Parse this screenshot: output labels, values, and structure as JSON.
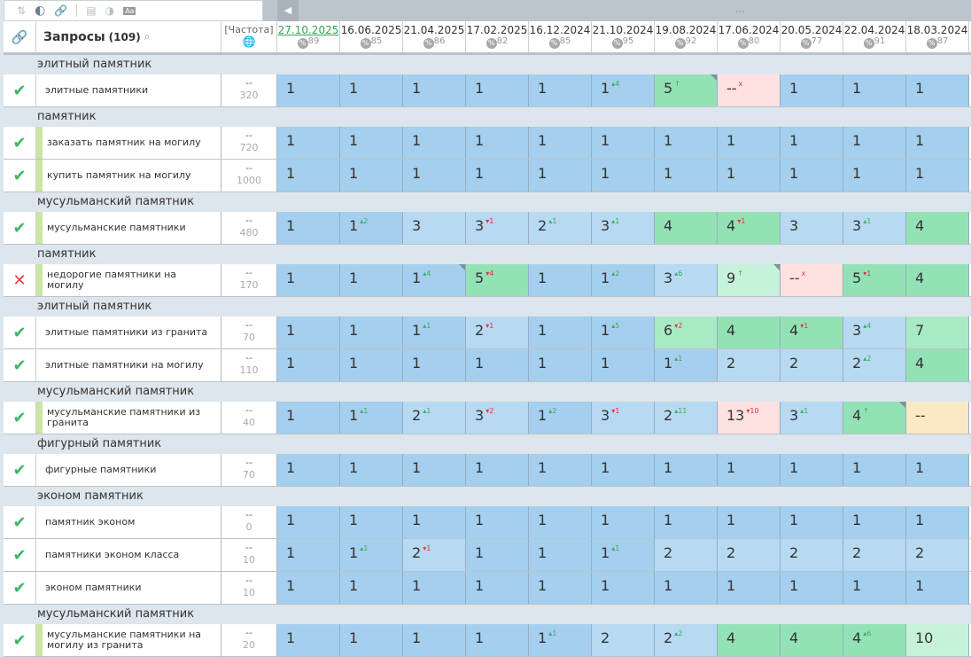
{
  "toolbar": {
    "icons": [
      "sort-icon",
      "toggle-icon",
      "link-icon",
      "calendar-icon",
      "contrast-icon",
      "font-icon"
    ]
  },
  "topbar": {
    "dots": "..."
  },
  "header": {
    "link_icon": "link-icon",
    "title": "Запросы",
    "count": "(109)",
    "search_icon": "search-icon",
    "freq": "[Частота]",
    "globe_icon": "globe-icon",
    "pct_symbol": "%",
    "dates": [
      {
        "d": "27.10.2025",
        "p": "89"
      },
      {
        "d": "16.06.2025",
        "p": "85"
      },
      {
        "d": "21.04.2025",
        "p": "86"
      },
      {
        "d": "17.02.2025",
        "p": "82"
      },
      {
        "d": "16.12.2024",
        "p": "85"
      },
      {
        "d": "21.10.2024",
        "p": "95"
      },
      {
        "d": "19.08.2024",
        "p": "92"
      },
      {
        "d": "17.06.2024",
        "p": "80"
      },
      {
        "d": "20.05.2024",
        "p": "77"
      },
      {
        "d": "22.04.2024",
        "p": "91"
      },
      {
        "d": "18.03.2024",
        "p": "87"
      }
    ]
  },
  "colors": {
    "b1": "#a4cfee",
    "b2": "#b7d9f2",
    "g": "#93e2b6",
    "lg": "#a8eac4",
    "vlg": "#c6f2da",
    "pk": "#fde1e1",
    "yl": "#fbe9c5",
    "ok": "#3cb763",
    "bad": "#e43d3d"
  },
  "groups": [
    {
      "name": "элитный памятник",
      "rows": [
        {
          "q": "элитные памятники",
          "status": "ok",
          "stripe": false,
          "f1": "--",
          "f2": "320",
          "cells": [
            [
              "1",
              "",
              "b1"
            ],
            [
              "1",
              "",
              "b1"
            ],
            [
              "1",
              "",
              "b1"
            ],
            [
              "1",
              "",
              "b1"
            ],
            [
              "1",
              "",
              "b1"
            ],
            [
              "1",
              "▴4",
              "b1",
              "up"
            ],
            [
              "5",
              "↑",
              "g",
              "up",
              1
            ],
            [
              "--",
              "x",
              "pk",
              "dn"
            ],
            [
              "1",
              "",
              "b1"
            ],
            [
              "1",
              "",
              "b1"
            ],
            [
              "1",
              "",
              "b1"
            ]
          ]
        }
      ]
    },
    {
      "name": "памятник",
      "rows": [
        {
          "q": "заказать памятник на могилу",
          "status": "ok",
          "stripe": true,
          "f1": "--",
          "f2": "720",
          "cells": [
            [
              "1",
              "",
              "b1"
            ],
            [
              "1",
              "",
              "b1"
            ],
            [
              "1",
              "",
              "b1"
            ],
            [
              "1",
              "",
              "b1"
            ],
            [
              "1",
              "",
              "b1"
            ],
            [
              "1",
              "",
              "b1"
            ],
            [
              "1",
              "",
              "b1"
            ],
            [
              "1",
              "",
              "b1"
            ],
            [
              "1",
              "",
              "b1"
            ],
            [
              "1",
              "",
              "b1"
            ],
            [
              "1",
              "",
              "b1"
            ]
          ]
        },
        {
          "q": "купить памятник на могилу",
          "status": "ok",
          "stripe": true,
          "f1": "--",
          "f2": "1000",
          "cells": [
            [
              "1",
              "",
              "b1"
            ],
            [
              "1",
              "",
              "b1"
            ],
            [
              "1",
              "",
              "b1"
            ],
            [
              "1",
              "",
              "b1"
            ],
            [
              "1",
              "",
              "b1"
            ],
            [
              "1",
              "",
              "b1"
            ],
            [
              "1",
              "",
              "b1"
            ],
            [
              "1",
              "",
              "b1"
            ],
            [
              "1",
              "",
              "b1"
            ],
            [
              "1",
              "",
              "b1"
            ],
            [
              "1",
              "",
              "b1"
            ]
          ]
        }
      ]
    },
    {
      "name": "мусульманский памятник",
      "rows": [
        {
          "q": "мусульманские памятники",
          "status": "ok",
          "stripe": true,
          "f1": "--",
          "f2": "480",
          "cells": [
            [
              "1",
              "",
              "b1"
            ],
            [
              "1",
              "▴2",
              "b1",
              "up"
            ],
            [
              "3",
              "",
              "b2"
            ],
            [
              "3",
              "▾1",
              "b2",
              "dn"
            ],
            [
              "2",
              "▴1",
              "b2",
              "up"
            ],
            [
              "3",
              "▴1",
              "b2",
              "up"
            ],
            [
              "4",
              "",
              "g"
            ],
            [
              "4",
              "▾1",
              "g",
              "dn"
            ],
            [
              "3",
              "",
              "b2"
            ],
            [
              "3",
              "▴1",
              "b2",
              "up"
            ],
            [
              "4",
              "",
              "g"
            ]
          ]
        }
      ]
    },
    {
      "name": "памятник",
      "rows": [
        {
          "q": "недорогие памятники на могилу",
          "status": "bad",
          "stripe": true,
          "f1": "--",
          "f2": "170",
          "cells": [
            [
              "1",
              "",
              "b1"
            ],
            [
              "1",
              "",
              "b1"
            ],
            [
              "1",
              "▴4",
              "b1",
              "up",
              1
            ],
            [
              "5",
              "▾4",
              "g",
              "dn"
            ],
            [
              "1",
              "",
              "b1"
            ],
            [
              "1",
              "▴2",
              "b1",
              "up"
            ],
            [
              "3",
              "▴6",
              "b2",
              "up"
            ],
            [
              "9",
              "↑",
              "vlg",
              "up",
              1
            ],
            [
              "--",
              "x",
              "pk",
              "dn"
            ],
            [
              "5",
              "▾1",
              "g",
              "dn"
            ],
            [
              "4",
              "",
              "g"
            ]
          ]
        }
      ]
    },
    {
      "name": "элитный памятник",
      "rows": [
        {
          "q": "элитные памятники из гранита",
          "status": "ok",
          "stripe": false,
          "f1": "--",
          "f2": "70",
          "cells": [
            [
              "1",
              "",
              "b1"
            ],
            [
              "1",
              "",
              "b1"
            ],
            [
              "1",
              "▴1",
              "b1",
              "up"
            ],
            [
              "2",
              "▾1",
              "b2",
              "dn"
            ],
            [
              "1",
              "",
              "b1"
            ],
            [
              "1",
              "▴5",
              "b1",
              "up"
            ],
            [
              "6",
              "▾2",
              "lg",
              "dn"
            ],
            [
              "4",
              "",
              "g"
            ],
            [
              "4",
              "▾1",
              "g",
              "dn"
            ],
            [
              "3",
              "▴4",
              "b2",
              "up"
            ],
            [
              "7",
              "",
              "lg"
            ]
          ]
        },
        {
          "q": "элитные памятники на могилу",
          "status": "ok",
          "stripe": false,
          "f1": "--",
          "f2": "110",
          "cells": [
            [
              "1",
              "",
              "b1"
            ],
            [
              "1",
              "",
              "b1"
            ],
            [
              "1",
              "",
              "b1"
            ],
            [
              "1",
              "",
              "b1"
            ],
            [
              "1",
              "",
              "b1"
            ],
            [
              "1",
              "",
              "b1"
            ],
            [
              "1",
              "▴1",
              "b1",
              "up"
            ],
            [
              "2",
              "",
              "b2"
            ],
            [
              "2",
              "",
              "b2"
            ],
            [
              "2",
              "▴2",
              "b2",
              "up"
            ],
            [
              "4",
              "",
              "g"
            ]
          ]
        }
      ]
    },
    {
      "name": "мусульманский памятник",
      "rows": [
        {
          "q": "мусульманские памятники из гранита",
          "status": "ok",
          "stripe": true,
          "f1": "--",
          "f2": "40",
          "cells": [
            [
              "1",
              "",
              "b1"
            ],
            [
              "1",
              "▴1",
              "b1",
              "up"
            ],
            [
              "2",
              "▴1",
              "b2",
              "up"
            ],
            [
              "3",
              "▾2",
              "b2",
              "dn"
            ],
            [
              "1",
              "▴2",
              "b1",
              "up"
            ],
            [
              "3",
              "▾1",
              "b2",
              "dn"
            ],
            [
              "2",
              "▴11",
              "b2",
              "up"
            ],
            [
              "13",
              "▾10",
              "pk",
              "dn"
            ],
            [
              "3",
              "▴1",
              "b2",
              "up"
            ],
            [
              "4",
              "↑",
              "g",
              "up",
              1
            ],
            [
              "--",
              "",
              "yl"
            ]
          ]
        }
      ]
    },
    {
      "name": "фигурный памятник",
      "rows": [
        {
          "q": "фигурные памятники",
          "status": "ok",
          "stripe": false,
          "f1": "--",
          "f2": "70",
          "cells": [
            [
              "1",
              "",
              "b1"
            ],
            [
              "1",
              "",
              "b1"
            ],
            [
              "1",
              "",
              "b1"
            ],
            [
              "1",
              "",
              "b1"
            ],
            [
              "1",
              "",
              "b1"
            ],
            [
              "1",
              "",
              "b1"
            ],
            [
              "1",
              "",
              "b1"
            ],
            [
              "1",
              "",
              "b1"
            ],
            [
              "1",
              "",
              "b1"
            ],
            [
              "1",
              "",
              "b1"
            ],
            [
              "1",
              "",
              "b1"
            ]
          ]
        }
      ]
    },
    {
      "name": "эконом памятник",
      "rows": [
        {
          "q": "памятник эконом",
          "status": "ok",
          "stripe": false,
          "f1": "--",
          "f2": "0",
          "cells": [
            [
              "1",
              "",
              "b1"
            ],
            [
              "1",
              "",
              "b1"
            ],
            [
              "1",
              "",
              "b1"
            ],
            [
              "1",
              "",
              "b1"
            ],
            [
              "1",
              "",
              "b1"
            ],
            [
              "1",
              "",
              "b1"
            ],
            [
              "1",
              "",
              "b1"
            ],
            [
              "1",
              "",
              "b1"
            ],
            [
              "1",
              "",
              "b1"
            ],
            [
              "1",
              "",
              "b1"
            ],
            [
              "1",
              "",
              "b1"
            ]
          ]
        },
        {
          "q": "памятники эконом класса",
          "status": "ok",
          "stripe": false,
          "f1": "--",
          "f2": "10",
          "cells": [
            [
              "1",
              "",
              "b1"
            ],
            [
              "1",
              "▴1",
              "b1",
              "up"
            ],
            [
              "2",
              "▾1",
              "b2",
              "dn"
            ],
            [
              "1",
              "",
              "b1"
            ],
            [
              "1",
              "",
              "b1"
            ],
            [
              "1",
              "▴1",
              "b1",
              "up"
            ],
            [
              "2",
              "",
              "b2"
            ],
            [
              "2",
              "",
              "b2"
            ],
            [
              "2",
              "",
              "b2"
            ],
            [
              "2",
              "",
              "b2"
            ],
            [
              "2",
              "",
              "b2"
            ]
          ]
        },
        {
          "q": "эконом памятники",
          "status": "ok",
          "stripe": false,
          "f1": "--",
          "f2": "10",
          "cells": [
            [
              "1",
              "",
              "b1"
            ],
            [
              "1",
              "",
              "b1"
            ],
            [
              "1",
              "",
              "b1"
            ],
            [
              "1",
              "",
              "b1"
            ],
            [
              "1",
              "",
              "b1"
            ],
            [
              "1",
              "",
              "b1"
            ],
            [
              "1",
              "",
              "b1"
            ],
            [
              "1",
              "",
              "b1"
            ],
            [
              "1",
              "",
              "b1"
            ],
            [
              "1",
              "",
              "b1"
            ],
            [
              "1",
              "",
              "b1"
            ]
          ]
        }
      ]
    },
    {
      "name": "мусульманский памятник",
      "rows": [
        {
          "q": "мусульманские памятники на могилу из гранита",
          "status": "ok",
          "stripe": true,
          "f1": "--",
          "f2": "20",
          "cells": [
            [
              "1",
              "",
              "b1"
            ],
            [
              "1",
              "",
              "b1"
            ],
            [
              "1",
              "",
              "b1"
            ],
            [
              "1",
              "",
              "b1"
            ],
            [
              "1",
              "▴1",
              "b1",
              "up"
            ],
            [
              "2",
              "",
              "b2"
            ],
            [
              "2",
              "▴2",
              "b2",
              "up"
            ],
            [
              "4",
              "",
              "g"
            ],
            [
              "4",
              "",
              "g"
            ],
            [
              "4",
              "▴6",
              "g",
              "up"
            ],
            [
              "10",
              "",
              "vlg"
            ]
          ]
        }
      ]
    }
  ]
}
